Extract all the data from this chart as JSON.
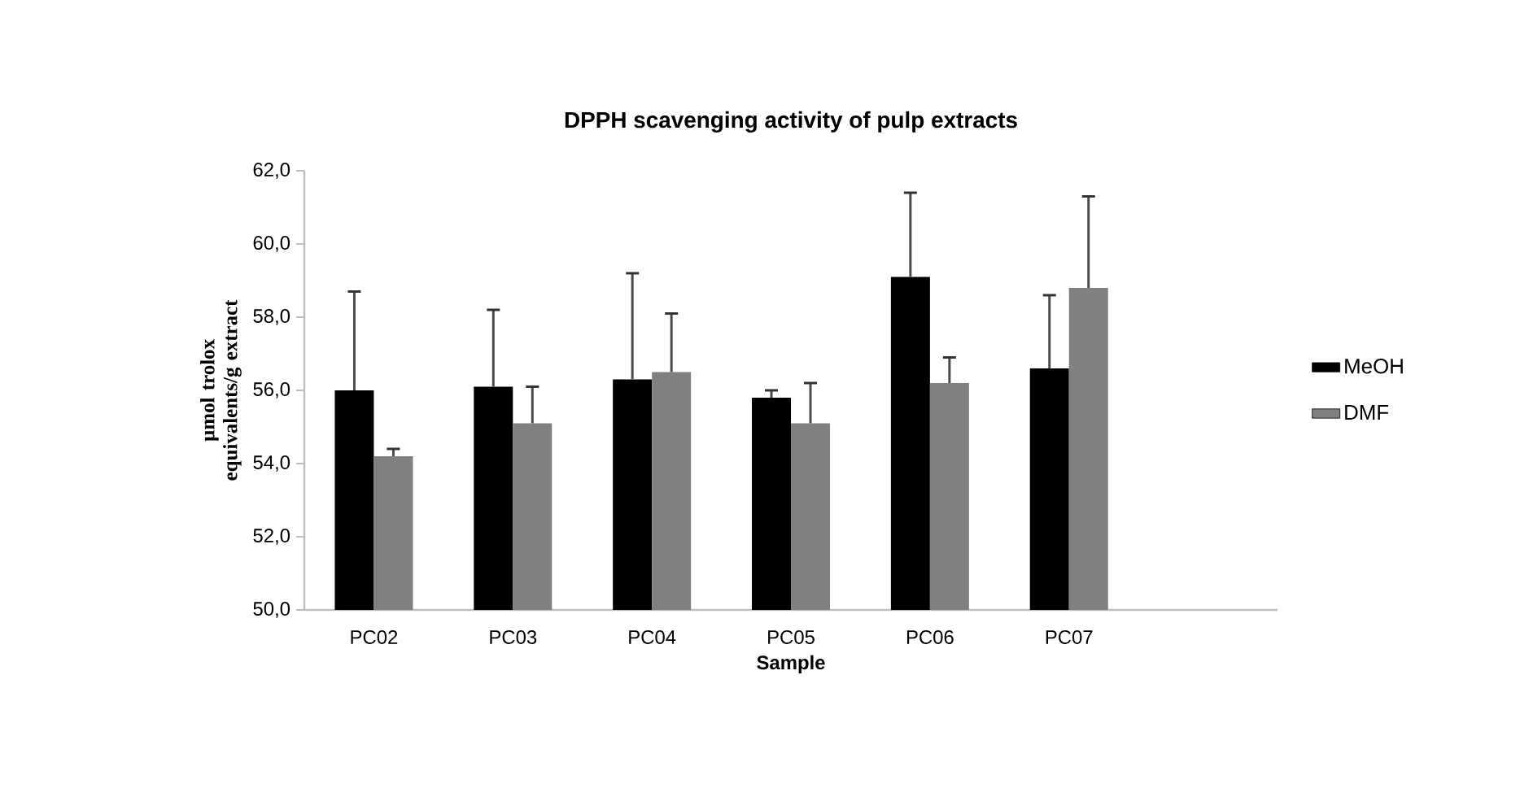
{
  "chart_data": {
    "type": "bar",
    "title": "DPPH scavenging activity of pulp extracts",
    "xlabel": "Sample",
    "ylabel": "µmol trolox equivalents/g extract",
    "categories": [
      "PC02",
      "PC03",
      "PC04",
      "PC05",
      "PC06",
      "PC07"
    ],
    "series": [
      {
        "name": "MeOH",
        "color": "#000000",
        "values": [
          56.0,
          56.1,
          56.3,
          55.8,
          59.1,
          56.6
        ],
        "errors": [
          [
            56.0,
            58.7
          ],
          [
            56.1,
            58.2
          ],
          [
            56.3,
            59.2
          ],
          [
            55.8,
            56.0
          ],
          [
            59.1,
            61.4
          ],
          [
            56.6,
            58.6
          ]
        ]
      },
      {
        "name": "DMF",
        "color": "#808080",
        "values": [
          54.2,
          55.1,
          56.5,
          55.1,
          56.2,
          58.8
        ],
        "errors": [
          [
            54.2,
            54.4
          ],
          [
            55.1,
            56.1
          ],
          [
            56.5,
            58.1
          ],
          [
            55.1,
            56.2
          ],
          [
            56.2,
            56.9
          ],
          [
            58.8,
            61.3
          ]
        ]
      }
    ],
    "ylim": [
      50,
      62
    ],
    "yticks": [
      {
        "value": 50,
        "label": "50,0"
      },
      {
        "value": 52,
        "label": "52,0"
      },
      {
        "value": 54,
        "label": "54,0"
      },
      {
        "value": 56,
        "label": "56,0"
      },
      {
        "value": 58,
        "label": "58,0"
      },
      {
        "value": 60,
        "label": "60,0"
      },
      {
        "value": 62,
        "label": "62,0"
      }
    ],
    "grid": false,
    "legend": "right"
  }
}
